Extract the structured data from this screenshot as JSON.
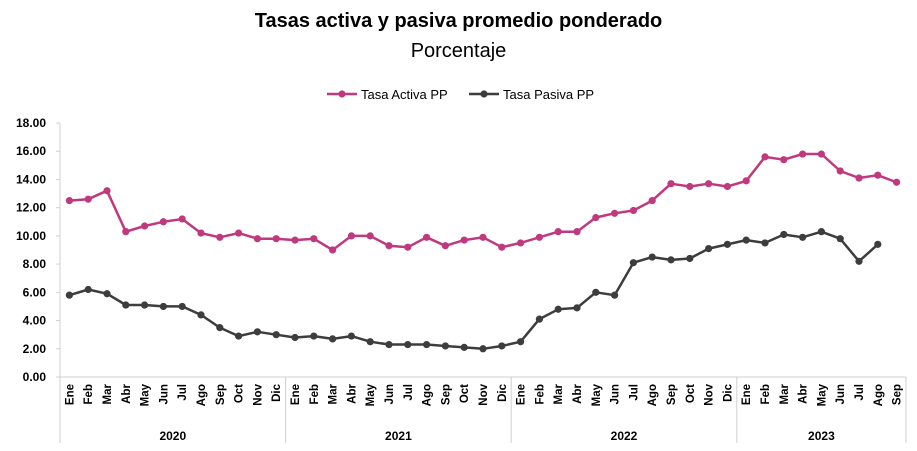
{
  "chart_data": {
    "type": "line",
    "title": "Tasas activa y pasiva promedio ponderado",
    "subtitle": "Porcentaje",
    "legend_position": "top-center",
    "grid": false,
    "ylim": [
      0,
      18
    ],
    "yticks": [
      "0.00",
      "2.00",
      "4.00",
      "6.00",
      "8.00",
      "10.00",
      "12.00",
      "14.00",
      "16.00",
      "18.00"
    ],
    "years": [
      {
        "label": "2020",
        "months": [
          "Ene",
          "Feb",
          "Mar",
          "Abr",
          "May",
          "Jun",
          "Jul",
          "Ago",
          "Sep",
          "Oct",
          "Nov",
          "Dic"
        ]
      },
      {
        "label": "2021",
        "months": [
          "Ene",
          "Feb",
          "Mar",
          "Abr",
          "May",
          "Jun",
          "Jul",
          "Ago",
          "Sep",
          "Oct",
          "Nov",
          "Dic"
        ]
      },
      {
        "label": "2022",
        "months": [
          "Ene",
          "Feb",
          "Mar",
          "Abr",
          "May",
          "Jun",
          "Jul",
          "Ago",
          "Sep",
          "Oct",
          "Nov",
          "Dic"
        ]
      },
      {
        "label": "2023",
        "months": [
          "Ene",
          "Feb",
          "Mar",
          "Abr",
          "May",
          "Jun",
          "Jul",
          "Ago",
          "Sep"
        ]
      }
    ],
    "series": [
      {
        "name": "Tasa Activa PP",
        "color": "#c0397e",
        "values": [
          12.5,
          12.6,
          13.2,
          10.3,
          10.7,
          11.0,
          11.2,
          10.2,
          9.9,
          10.2,
          9.8,
          9.8,
          9.7,
          9.8,
          9.0,
          10.0,
          10.0,
          9.3,
          9.2,
          9.9,
          9.3,
          9.7,
          9.9,
          9.2,
          9.5,
          9.9,
          10.3,
          10.3,
          11.3,
          11.6,
          11.8,
          12.5,
          13.7,
          13.5,
          13.7,
          13.5,
          13.9,
          15.6,
          15.4,
          15.8,
          15.8,
          14.6,
          14.1,
          14.3,
          13.8
        ]
      },
      {
        "name": "Tasa Pasiva PP",
        "color": "#3d3d3d",
        "values": [
          5.8,
          6.2,
          5.9,
          5.1,
          5.1,
          5.0,
          5.0,
          4.4,
          3.5,
          2.9,
          3.2,
          3.0,
          2.8,
          2.9,
          2.7,
          2.9,
          2.5,
          2.3,
          2.3,
          2.3,
          2.2,
          2.1,
          2.0,
          2.2,
          2.5,
          4.1,
          4.8,
          4.9,
          6.0,
          5.8,
          8.1,
          8.5,
          8.3,
          8.4,
          9.1,
          9.4,
          9.7,
          9.5,
          10.1,
          9.9,
          10.3,
          9.8,
          8.2,
          9.4,
          null
        ]
      }
    ]
  }
}
